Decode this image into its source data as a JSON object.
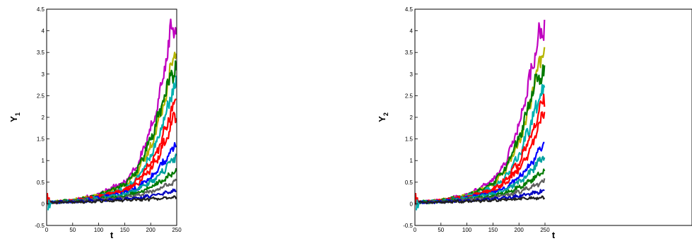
{
  "chart_data": [
    {
      "type": "line",
      "ylabel_main": "Y",
      "ylabel_sub": "1",
      "xlabel": "t",
      "xlim": [
        0,
        250
      ],
      "ylim": [
        -0.5,
        4.5
      ],
      "x_ticks": [
        "0",
        "50",
        "100",
        "150",
        "200",
        "250"
      ],
      "y_ticks": [
        "-0.5",
        "0",
        "0.5",
        "1",
        "1.5",
        "2",
        "2.5",
        "3",
        "3.5",
        "4",
        "4.5"
      ],
      "grid": false,
      "series_note": "many stochastic sample paths starting near 0 and growing after t≈150",
      "series": [
        {
          "color": "#c000c0",
          "x": [
            0,
            50,
            100,
            150,
            175,
            200,
            215,
            230,
            240,
            250
          ],
          "y": [
            0.03,
            0.08,
            0.22,
            0.5,
            0.9,
            1.7,
            2.4,
            3.3,
            4.1,
            4.0
          ]
        },
        {
          "color": "#b5b500",
          "x": [
            0,
            50,
            100,
            150,
            175,
            200,
            215,
            230,
            240,
            250
          ],
          "y": [
            0.03,
            0.08,
            0.2,
            0.42,
            0.75,
            1.3,
            1.9,
            2.6,
            3.2,
            3.6
          ]
        },
        {
          "color": "#007a00",
          "x": [
            0,
            50,
            100,
            150,
            175,
            200,
            215,
            230,
            240,
            250
          ],
          "y": [
            0.03,
            0.08,
            0.2,
            0.45,
            0.8,
            1.5,
            2.0,
            2.6,
            3.0,
            3.2
          ]
        },
        {
          "color": "#00b0b0",
          "x": [
            0,
            50,
            100,
            150,
            175,
            200,
            215,
            230,
            240,
            250
          ],
          "y": [
            0.03,
            0.07,
            0.18,
            0.35,
            0.6,
            1.1,
            1.6,
            2.1,
            2.5,
            2.8
          ]
        },
        {
          "color": "#ff0000",
          "x": [
            0,
            50,
            100,
            150,
            175,
            200,
            215,
            230,
            240,
            250
          ],
          "y": [
            0.03,
            0.07,
            0.17,
            0.32,
            0.55,
            0.95,
            1.3,
            1.8,
            2.2,
            2.4
          ]
        },
        {
          "color": "#ff0000",
          "x": [
            0,
            50,
            100,
            150,
            175,
            200,
            215,
            230,
            240,
            250
          ],
          "y": [
            0.03,
            0.07,
            0.16,
            0.3,
            0.48,
            0.8,
            1.1,
            1.5,
            1.9,
            2.1
          ]
        },
        {
          "color": "#0000ff",
          "x": [
            0,
            50,
            100,
            150,
            175,
            200,
            215,
            230,
            240,
            250
          ],
          "y": [
            0.03,
            0.06,
            0.14,
            0.25,
            0.38,
            0.6,
            0.8,
            1.05,
            1.25,
            1.45
          ]
        },
        {
          "color": "#00a0a0",
          "x": [
            0,
            50,
            100,
            150,
            175,
            200,
            215,
            230,
            240,
            250
          ],
          "y": [
            0.03,
            0.06,
            0.13,
            0.22,
            0.33,
            0.5,
            0.65,
            0.85,
            1.0,
            1.1
          ]
        },
        {
          "color": "#007a00",
          "x": [
            0,
            50,
            100,
            150,
            175,
            200,
            215,
            230,
            240,
            250
          ],
          "y": [
            0.03,
            0.05,
            0.11,
            0.18,
            0.26,
            0.38,
            0.48,
            0.6,
            0.7,
            0.78
          ]
        },
        {
          "color": "#606060",
          "x": [
            0,
            50,
            100,
            150,
            175,
            200,
            215,
            230,
            240,
            250
          ],
          "y": [
            0.03,
            0.05,
            0.1,
            0.15,
            0.2,
            0.28,
            0.34,
            0.42,
            0.48,
            0.52
          ]
        },
        {
          "color": "#0000c0",
          "x": [
            0,
            50,
            100,
            150,
            175,
            200,
            215,
            230,
            240,
            250
          ],
          "y": [
            0.03,
            0.04,
            0.08,
            0.11,
            0.14,
            0.18,
            0.21,
            0.25,
            0.28,
            0.3
          ]
        },
        {
          "color": "#202020",
          "x": [
            0,
            50,
            100,
            150,
            175,
            200,
            215,
            230,
            240,
            250
          ],
          "y": [
            0.03,
            0.04,
            0.06,
            0.08,
            0.09,
            0.11,
            0.12,
            0.13,
            0.14,
            0.15
          ]
        }
      ]
    },
    {
      "type": "line",
      "ylabel_main": "Y",
      "ylabel_sub": "2",
      "xlabel": "t",
      "xlim": [
        0,
        250
      ],
      "ylim": [
        -0.5,
        4.5
      ],
      "x_ticks": [
        "0",
        "50",
        "100",
        "150",
        "200",
        "250"
      ],
      "y_ticks": [
        "-0.5",
        "0",
        "0.5",
        "1",
        "1.5",
        "2",
        "2.5",
        "3",
        "3.5",
        "4",
        "4.5"
      ],
      "grid": false,
      "series_note": "many stochastic sample paths starting near 0 and growing after t≈150",
      "series": [
        {
          "color": "#c000c0",
          "x": [
            0,
            50,
            100,
            150,
            175,
            200,
            215,
            230,
            240,
            250
          ],
          "y": [
            0.03,
            0.08,
            0.22,
            0.55,
            0.95,
            1.8,
            2.5,
            3.4,
            4.0,
            4.1
          ]
        },
        {
          "color": "#b5b500",
          "x": [
            0,
            50,
            100,
            150,
            175,
            200,
            215,
            230,
            240,
            250
          ],
          "y": [
            0.03,
            0.08,
            0.2,
            0.45,
            0.8,
            1.4,
            2.0,
            2.8,
            3.3,
            3.5
          ]
        },
        {
          "color": "#007a00",
          "x": [
            0,
            50,
            100,
            150,
            175,
            200,
            215,
            230,
            240,
            250
          ],
          "y": [
            0.03,
            0.08,
            0.2,
            0.45,
            0.85,
            1.5,
            2.1,
            2.7,
            3.0,
            3.1
          ]
        },
        {
          "color": "#00b0b0",
          "x": [
            0,
            50,
            100,
            150,
            175,
            200,
            215,
            230,
            240,
            250
          ],
          "y": [
            0.03,
            0.07,
            0.18,
            0.36,
            0.62,
            1.1,
            1.6,
            2.1,
            2.5,
            2.7
          ]
        },
        {
          "color": "#ff0000",
          "x": [
            0,
            50,
            100,
            150,
            175,
            200,
            215,
            230,
            240,
            250
          ],
          "y": [
            0.03,
            0.07,
            0.17,
            0.33,
            0.56,
            0.95,
            1.35,
            1.8,
            2.2,
            2.4
          ]
        },
        {
          "color": "#ff0000",
          "x": [
            0,
            50,
            100,
            150,
            175,
            200,
            215,
            230,
            240,
            250
          ],
          "y": [
            0.03,
            0.07,
            0.16,
            0.3,
            0.48,
            0.8,
            1.1,
            1.5,
            1.9,
            2.1
          ]
        },
        {
          "color": "#0000ff",
          "x": [
            0,
            50,
            100,
            150,
            175,
            200,
            215,
            230,
            240,
            250
          ],
          "y": [
            0.03,
            0.06,
            0.14,
            0.25,
            0.38,
            0.6,
            0.8,
            1.05,
            1.25,
            1.45
          ]
        },
        {
          "color": "#00a0a0",
          "x": [
            0,
            50,
            100,
            150,
            175,
            200,
            215,
            230,
            240,
            250
          ],
          "y": [
            0.03,
            0.06,
            0.13,
            0.22,
            0.33,
            0.5,
            0.65,
            0.85,
            1.0,
            1.1
          ]
        },
        {
          "color": "#007a00",
          "x": [
            0,
            50,
            100,
            150,
            175,
            200,
            215,
            230,
            240,
            250
          ],
          "y": [
            0.03,
            0.05,
            0.11,
            0.18,
            0.26,
            0.38,
            0.48,
            0.6,
            0.7,
            0.78
          ]
        },
        {
          "color": "#606060",
          "x": [
            0,
            50,
            100,
            150,
            175,
            200,
            215,
            230,
            240,
            250
          ],
          "y": [
            0.03,
            0.05,
            0.1,
            0.15,
            0.2,
            0.28,
            0.34,
            0.42,
            0.48,
            0.52
          ]
        },
        {
          "color": "#0000c0",
          "x": [
            0,
            50,
            100,
            150,
            175,
            200,
            215,
            230,
            240,
            250
          ],
          "y": [
            0.03,
            0.04,
            0.08,
            0.11,
            0.14,
            0.18,
            0.21,
            0.25,
            0.28,
            0.3
          ]
        },
        {
          "color": "#202020",
          "x": [
            0,
            50,
            100,
            150,
            175,
            200,
            215,
            230,
            240,
            250
          ],
          "y": [
            0.03,
            0.04,
            0.06,
            0.08,
            0.09,
            0.11,
            0.12,
            0.13,
            0.14,
            0.15
          ]
        }
      ]
    }
  ]
}
